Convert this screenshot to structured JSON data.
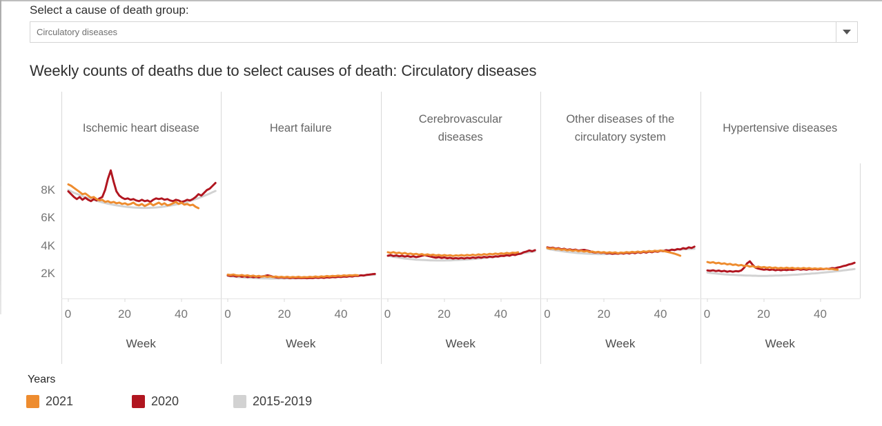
{
  "filter": {
    "label": "Select a cause of death group:",
    "value": "Circulatory diseases"
  },
  "title": "Weekly counts of deaths due to select causes of death: Circulatory diseases",
  "axis": {
    "x_ticks": [
      0,
      20,
      40
    ],
    "x_label": "Week",
    "y_ticks": [
      "2K",
      "4K",
      "6K",
      "8K"
    ]
  },
  "legend": {
    "title": "Years",
    "items": [
      {
        "label": "2021",
        "color": "#ee8c2f"
      },
      {
        "label": "2020",
        "color": "#b11620"
      },
      {
        "label": "2015-2019",
        "color": "#d2d2d2"
      }
    ]
  },
  "chart_data": {
    "type": "line",
    "x_unit": "week",
    "x_range": [
      0,
      52
    ],
    "values_unit": "thousands of deaths per week",
    "y_tick_values_thousands": [
      2,
      4,
      6,
      8
    ],
    "grid": false,
    "legend_position": "bottom-left",
    "panels": [
      {
        "title": "Ischemic heart disease",
        "series": [
          {
            "name": "2021",
            "color": "#ee8c2f",
            "values": [
              8.4,
              8.3,
              8.15,
              8.0,
              7.85,
              7.7,
              7.75,
              7.6,
              7.45,
              7.5,
              7.35,
              7.25,
              7.3,
              7.15,
              7.2,
              7.1,
              7.15,
              7.05,
              7.1,
              7.0,
              7.05,
              6.95,
              7.0,
              7.1,
              6.95,
              6.9,
              7.0,
              6.85,
              6.95,
              7.05,
              6.9,
              7.0,
              7.1,
              6.95,
              7.05,
              6.9,
              6.95,
              7.05,
              7.15,
              7.0,
              7.1,
              6.95,
              7.0,
              6.9,
              6.95,
              6.8,
              6.7
            ]
          },
          {
            "name": "2020",
            "color": "#b11620",
            "values": [
              7.9,
              7.7,
              7.5,
              7.35,
              7.5,
              7.3,
              7.45,
              7.3,
              7.2,
              7.35,
              7.25,
              7.4,
              7.5,
              8.0,
              8.8,
              9.4,
              8.6,
              7.9,
              7.6,
              7.45,
              7.35,
              7.4,
              7.3,
              7.35,
              7.25,
              7.2,
              7.3,
              7.2,
              7.25,
              7.15,
              7.3,
              7.4,
              7.35,
              7.4,
              7.3,
              7.35,
              7.25,
              7.2,
              7.3,
              7.25,
              7.15,
              7.2,
              7.3,
              7.25,
              7.35,
              7.5,
              7.7,
              7.6,
              7.8,
              8.0,
              8.1,
              8.3,
              8.5
            ]
          },
          {
            "name": "2015-2019",
            "color": "#d2d2d2",
            "values": [
              8.0,
              7.9,
              7.8,
              7.72,
              7.64,
              7.56,
              7.49,
              7.42,
              7.35,
              7.29,
              7.23,
              7.17,
              7.12,
              7.07,
              7.02,
              6.98,
              6.94,
              6.9,
              6.87,
              6.84,
              6.81,
              6.79,
              6.77,
              6.75,
              6.74,
              6.73,
              6.72,
              6.72,
              6.72,
              6.73,
              6.74,
              6.75,
              6.77,
              6.79,
              6.82,
              6.85,
              6.88,
              6.92,
              6.96,
              7.0,
              7.05,
              7.1,
              7.16,
              7.22,
              7.28,
              7.35,
              7.42,
              7.5,
              7.58,
              7.66,
              7.75,
              7.84,
              7.93
            ]
          }
        ]
      },
      {
        "title": "Heart failure",
        "series": [
          {
            "name": "2021",
            "color": "#ee8c2f",
            "values": [
              1.95,
              1.92,
              1.96,
              1.9,
              1.88,
              1.92,
              1.86,
              1.9,
              1.84,
              1.88,
              1.82,
              1.86,
              1.8,
              1.84,
              1.79,
              1.83,
              1.78,
              1.82,
              1.77,
              1.8,
              1.76,
              1.8,
              1.75,
              1.79,
              1.76,
              1.8,
              1.75,
              1.78,
              1.76,
              1.8,
              1.77,
              1.82,
              1.78,
              1.83,
              1.8,
              1.85,
              1.82,
              1.86,
              1.84,
              1.88,
              1.85,
              1.9,
              1.87,
              1.91,
              1.89,
              1.92,
              1.9
            ]
          },
          {
            "name": "2020",
            "color": "#b11620",
            "values": [
              1.9,
              1.85,
              1.88,
              1.82,
              1.86,
              1.8,
              1.84,
              1.78,
              1.82,
              1.77,
              1.8,
              1.76,
              1.82,
              1.85,
              1.9,
              1.86,
              1.8,
              1.76,
              1.73,
              1.76,
              1.72,
              1.75,
              1.7,
              1.74,
              1.7,
              1.73,
              1.7,
              1.72,
              1.69,
              1.72,
              1.7,
              1.74,
              1.71,
              1.75,
              1.72,
              1.76,
              1.74,
              1.78,
              1.76,
              1.8,
              1.78,
              1.82,
              1.8,
              1.84,
              1.82,
              1.86,
              1.85,
              1.9,
              1.88,
              1.93,
              1.95,
              1.98,
              2.0
            ]
          },
          {
            "name": "2015-2019",
            "color": "#d2d2d2",
            "values": [
              1.85,
              1.83,
              1.81,
              1.79,
              1.77,
              1.76,
              1.74,
              1.73,
              1.72,
              1.71,
              1.7,
              1.69,
              1.69,
              1.68,
              1.68,
              1.67,
              1.67,
              1.67,
              1.67,
              1.67,
              1.67,
              1.68,
              1.68,
              1.68,
              1.69,
              1.69,
              1.7,
              1.7,
              1.71,
              1.72,
              1.72,
              1.73,
              1.74,
              1.75,
              1.76,
              1.77,
              1.78,
              1.79,
              1.8,
              1.81,
              1.82,
              1.83,
              1.84,
              1.85,
              1.86,
              1.87,
              1.88,
              1.89,
              1.9,
              1.91,
              1.92,
              1.93,
              1.94
            ]
          }
        ]
      },
      {
        "title": "Cerebrovascular\ndiseases",
        "series": [
          {
            "name": "2021",
            "color": "#ee8c2f",
            "values": [
              3.55,
              3.5,
              3.56,
              3.48,
              3.52,
              3.45,
              3.5,
              3.42,
              3.46,
              3.4,
              3.44,
              3.37,
              3.42,
              3.35,
              3.4,
              3.34,
              3.38,
              3.32,
              3.36,
              3.3,
              3.35,
              3.3,
              3.34,
              3.28,
              3.33,
              3.3,
              3.35,
              3.3,
              3.36,
              3.32,
              3.38,
              3.33,
              3.4,
              3.35,
              3.42,
              3.37,
              3.44,
              3.4,
              3.46,
              3.42,
              3.48,
              3.44,
              3.5,
              3.46,
              3.52,
              3.5,
              3.55
            ]
          },
          {
            "name": "2020",
            "color": "#b11620",
            "values": [
              3.3,
              3.35,
              3.28,
              3.32,
              3.26,
              3.3,
              3.24,
              3.28,
              3.22,
              3.26,
              3.2,
              3.24,
              3.3,
              3.34,
              3.3,
              3.25,
              3.2,
              3.16,
              3.2,
              3.14,
              3.18,
              3.12,
              3.16,
              3.1,
              3.14,
              3.1,
              3.15,
              3.1,
              3.16,
              3.12,
              3.18,
              3.14,
              3.2,
              3.16,
              3.22,
              3.18,
              3.24,
              3.2,
              3.26,
              3.24,
              3.3,
              3.28,
              3.34,
              3.3,
              3.38,
              3.35,
              3.42,
              3.45,
              3.55,
              3.6,
              3.68,
              3.62,
              3.7
            ]
          },
          {
            "name": "2015-2019",
            "color": "#d2d2d2",
            "values": [
              3.3,
              3.26,
              3.22,
              3.19,
              3.16,
              3.13,
              3.1,
              3.08,
              3.06,
              3.04,
              3.02,
              3.01,
              3.0,
              2.99,
              2.98,
              2.97,
              2.97,
              2.96,
              2.96,
              2.96,
              2.96,
              2.97,
              2.97,
              2.98,
              2.99,
              3.0,
              3.01,
              3.02,
              3.03,
              3.05,
              3.06,
              3.08,
              3.1,
              3.12,
              3.14,
              3.16,
              3.18,
              3.2,
              3.22,
              3.25,
              3.27,
              3.3,
              3.32,
              3.35,
              3.38,
              3.4,
              3.43,
              3.46,
              3.49,
              3.52,
              3.55,
              3.58,
              3.61
            ]
          }
        ]
      },
      {
        "title": "Other diseases of the\ncirculatory system",
        "series": [
          {
            "name": "2021",
            "color": "#ee8c2f",
            "values": [
              3.85,
              3.8,
              3.84,
              3.76,
              3.8,
              3.72,
              3.76,
              3.68,
              3.72,
              3.65,
              3.7,
              3.62,
              3.66,
              3.6,
              3.64,
              3.56,
              3.6,
              3.54,
              3.58,
              3.52,
              3.56,
              3.5,
              3.55,
              3.5,
              3.54,
              3.48,
              3.53,
              3.5,
              3.56,
              3.52,
              3.58,
              3.54,
              3.6,
              3.55,
              3.62,
              3.58,
              3.64,
              3.6,
              3.66,
              3.62,
              3.68,
              3.64,
              3.6,
              3.55,
              3.5,
              3.45,
              3.38,
              3.3
            ]
          },
          {
            "name": "2020",
            "color": "#b11620",
            "values": [
              3.9,
              3.85,
              3.88,
              3.8,
              3.84,
              3.76,
              3.8,
              3.72,
              3.76,
              3.7,
              3.74,
              3.66,
              3.7,
              3.72,
              3.68,
              3.62,
              3.56,
              3.52,
              3.56,
              3.5,
              3.54,
              3.46,
              3.5,
              3.44,
              3.48,
              3.44,
              3.5,
              3.45,
              3.52,
              3.46,
              3.54,
              3.48,
              3.56,
              3.5,
              3.58,
              3.52,
              3.6,
              3.55,
              3.62,
              3.58,
              3.66,
              3.62,
              3.7,
              3.66,
              3.74,
              3.7,
              3.78,
              3.75,
              3.84,
              3.8,
              3.9,
              3.85,
              3.95
            ]
          },
          {
            "name": "2015-2019",
            "color": "#d2d2d2",
            "values": [
              3.8,
              3.76,
              3.72,
              3.69,
              3.66,
              3.63,
              3.6,
              3.57,
              3.55,
              3.53,
              3.51,
              3.49,
              3.48,
              3.46,
              3.45,
              3.44,
              3.43,
              3.43,
              3.42,
              3.42,
              3.42,
              3.42,
              3.43,
              3.43,
              3.44,
              3.45,
              3.46,
              3.47,
              3.48,
              3.49,
              3.5,
              3.52,
              3.53,
              3.55,
              3.56,
              3.58,
              3.6,
              3.61,
              3.63,
              3.65,
              3.66,
              3.68,
              3.69,
              3.71,
              3.72,
              3.73,
              3.74,
              3.75,
              3.76,
              3.77,
              3.78,
              3.79,
              3.8
            ]
          }
        ]
      },
      {
        "title": "Hypertensive diseases",
        "series": [
          {
            "name": "2021",
            "color": "#ee8c2f",
            "values": [
              2.85,
              2.8,
              2.84,
              2.76,
              2.8,
              2.72,
              2.76,
              2.68,
              2.72,
              2.64,
              2.68,
              2.6,
              2.64,
              2.56,
              2.6,
              2.52,
              2.56,
              2.48,
              2.52,
              2.46,
              2.5,
              2.44,
              2.48,
              2.42,
              2.46,
              2.4,
              2.44,
              2.4,
              2.45,
              2.4,
              2.44,
              2.38,
              2.42,
              2.38,
              2.43,
              2.38,
              2.42,
              2.36,
              2.4,
              2.36,
              2.4,
              2.35,
              2.38,
              2.34,
              2.36,
              2.32,
              2.3
            ]
          },
          {
            "name": "2020",
            "color": "#b11620",
            "values": [
              2.25,
              2.22,
              2.26,
              2.2,
              2.24,
              2.18,
              2.22,
              2.16,
              2.2,
              2.16,
              2.2,
              2.18,
              2.25,
              2.45,
              2.75,
              2.9,
              2.65,
              2.45,
              2.38,
              2.34,
              2.3,
              2.33,
              2.28,
              2.32,
              2.26,
              2.3,
              2.26,
              2.3,
              2.27,
              2.31,
              2.28,
              2.32,
              2.35,
              2.3,
              2.34,
              2.3,
              2.35,
              2.32,
              2.36,
              2.32,
              2.36,
              2.34,
              2.38,
              2.36,
              2.42,
              2.4,
              2.46,
              2.5,
              2.56,
              2.6,
              2.68,
              2.72,
              2.8
            ]
          },
          {
            "name": "2015-2019",
            "color": "#d2d2d2",
            "values": [
              2.1,
              2.07,
              2.05,
              2.03,
              2.01,
              1.99,
              1.97,
              1.96,
              1.94,
              1.93,
              1.92,
              1.91,
              1.9,
              1.89,
              1.88,
              1.88,
              1.87,
              1.87,
              1.86,
              1.86,
              1.86,
              1.86,
              1.87,
              1.87,
              1.88,
              1.88,
              1.89,
              1.9,
              1.91,
              1.92,
              1.93,
              1.94,
              1.95,
              1.97,
              1.98,
              2.0,
              2.01,
              2.03,
              2.04,
              2.06,
              2.08,
              2.1,
              2.12,
              2.14,
              2.16,
              2.18,
              2.2,
              2.22,
              2.25,
              2.27,
              2.3,
              2.32,
              2.35
            ]
          }
        ]
      }
    ]
  }
}
